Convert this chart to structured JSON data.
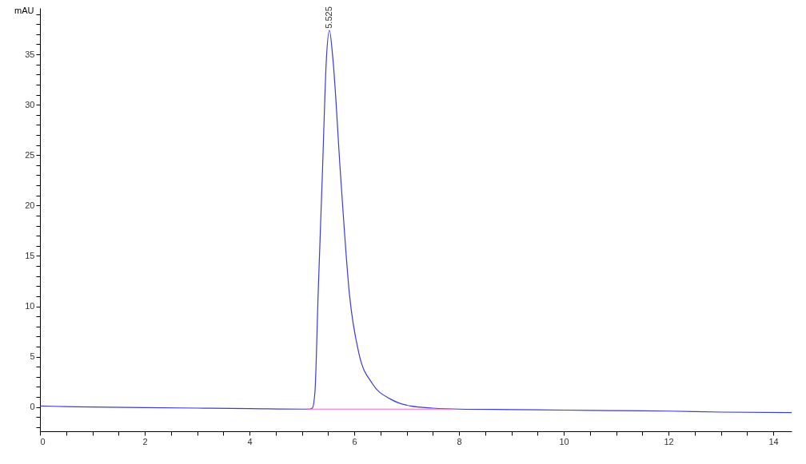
{
  "chart_data": {
    "type": "line",
    "ylabel": "mAU",
    "xlim": [
      0,
      14.35
    ],
    "ylim": [
      -2.4,
      39.6
    ],
    "xticks": [
      0,
      {
        "value": 0.5,
        "label": null
      },
      {
        "value": 1,
        "label": null
      },
      {
        "value": 1.5,
        "label": null
      },
      2,
      {
        "value": 2.5,
        "label": null
      },
      {
        "value": 3,
        "label": null
      },
      {
        "value": 3.5,
        "label": null
      },
      4,
      {
        "value": 4.5,
        "label": null
      },
      {
        "value": 5,
        "label": null
      },
      {
        "value": 5.5,
        "label": null
      },
      6,
      {
        "value": 6.5,
        "label": null
      },
      {
        "value": 7,
        "label": null
      },
      {
        "value": 7.5,
        "label": null
      },
      8,
      {
        "value": 8.5,
        "label": null
      },
      {
        "value": 9,
        "label": null
      },
      {
        "value": 9.5,
        "label": null
      },
      10,
      {
        "value": 10.5,
        "label": null
      },
      {
        "value": 11,
        "label": null
      },
      {
        "value": 11.5,
        "label": null
      },
      12,
      {
        "value": 12.5,
        "label": null
      },
      {
        "value": 13,
        "label": null
      },
      {
        "value": 13.5,
        "label": null
      },
      14
    ],
    "yticks": [
      {
        "value": -2,
        "label": null
      },
      {
        "value": -1,
        "label": null
      },
      0,
      {
        "value": 1,
        "label": null
      },
      {
        "value": 2,
        "label": null
      },
      {
        "value": 3,
        "label": null
      },
      {
        "value": 4,
        "label": null
      },
      5,
      {
        "value": 6,
        "label": null
      },
      {
        "value": 7,
        "label": null
      },
      {
        "value": 8,
        "label": null
      },
      {
        "value": 9,
        "label": null
      },
      10,
      {
        "value": 11,
        "label": null
      },
      {
        "value": 12,
        "label": null
      },
      {
        "value": 13,
        "label": null
      },
      {
        "value": 14,
        "label": null
      },
      15,
      {
        "value": 16,
        "label": null
      },
      {
        "value": 17,
        "label": null
      },
      {
        "value": 18,
        "label": null
      },
      {
        "value": 19,
        "label": null
      },
      20,
      {
        "value": 21,
        "label": null
      },
      {
        "value": 22,
        "label": null
      },
      {
        "value": 23,
        "label": null
      },
      {
        "value": 24,
        "label": null
      },
      25,
      {
        "value": 26,
        "label": null
      },
      {
        "value": 27,
        "label": null
      },
      {
        "value": 28,
        "label": null
      },
      {
        "value": 29,
        "label": null
      },
      30,
      {
        "value": 31,
        "label": null
      },
      {
        "value": 32,
        "label": null
      },
      {
        "value": 33,
        "label": null
      },
      {
        "value": 34,
        "label": null
      },
      35,
      {
        "value": 36,
        "label": null
      },
      {
        "value": 37,
        "label": null
      },
      {
        "value": 38,
        "label": null
      },
      {
        "value": 39,
        "label": null
      }
    ],
    "grid": false,
    "marker": "none",
    "line_style": "solid",
    "series": [
      {
        "color": "#3c3cd2",
        "x": [
          0,
          0.5,
          1,
          2,
          3,
          4,
          5,
          5.15,
          5.2,
          5.25,
          5.31,
          5.39,
          5.47,
          5.525,
          5.59,
          5.74,
          5.91,
          6.09,
          6.35,
          6.69,
          7.08,
          7.5,
          8,
          9,
          10,
          11,
          12,
          13,
          14.35
        ],
        "values": [
          0.1,
          0.05,
          0,
          -0.05,
          -0.1,
          -0.15,
          -0.2,
          -0.2,
          -0.1,
          1.5,
          11.1,
          22.9,
          34.7,
          37.4,
          34.7,
          22.9,
          11.1,
          5.3,
          2.3,
          0.8,
          0.1,
          -0.1,
          -0.2,
          -0.25,
          -0.3,
          -0.35,
          -0.4,
          -0.5,
          -0.55
        ]
      },
      {
        "color": "#ff66cc",
        "x": [
          5.1,
          7.9
        ],
        "values": [
          -0.2,
          -0.2
        ]
      }
    ],
    "annotations": [
      {
        "text": "5.525",
        "x": 5.525,
        "y": 37.4
      }
    ]
  }
}
